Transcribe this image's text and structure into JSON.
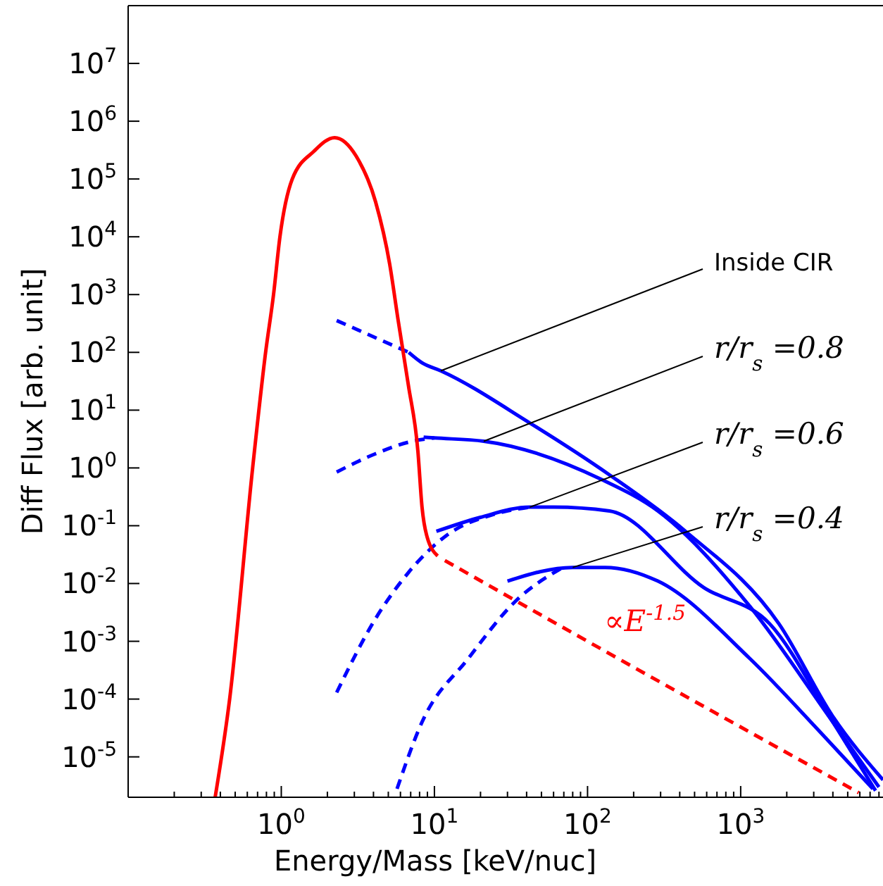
{
  "chart_data": {
    "type": "line",
    "xlabel": "Energy/Mass [keV/nuc]",
    "ylabel": "Diff Flux [arb. unit]",
    "log": "xy",
    "grid": false,
    "marker": "none",
    "xlim": [
      0.1,
      8500
    ],
    "ylim": [
      2e-06,
      100000000.0
    ],
    "xticks": [
      {
        "value": 0.2,
        "label": null
      },
      {
        "value": 0.3,
        "label": null
      },
      {
        "value": 0.4,
        "label": null
      },
      {
        "value": 0.5,
        "label": null
      },
      {
        "value": 0.6,
        "label": null
      },
      {
        "value": 0.7,
        "label": null
      },
      {
        "value": 0.8,
        "label": null
      },
      {
        "value": 0.9,
        "label": null
      },
      {
        "value": 1,
        "label": "10$^{0}$"
      },
      {
        "value": 2,
        "label": null
      },
      {
        "value": 3,
        "label": null
      },
      {
        "value": 4,
        "label": null
      },
      {
        "value": 5,
        "label": null
      },
      {
        "value": 6,
        "label": null
      },
      {
        "value": 7,
        "label": null
      },
      {
        "value": 8,
        "label": null
      },
      {
        "value": 9,
        "label": null
      },
      {
        "value": 10,
        "label": "10$^{1}$"
      },
      {
        "value": 20,
        "label": null
      },
      {
        "value": 30,
        "label": null
      },
      {
        "value": 40,
        "label": null
      },
      {
        "value": 50,
        "label": null
      },
      {
        "value": 60,
        "label": null
      },
      {
        "value": 70,
        "label": null
      },
      {
        "value": 80,
        "label": null
      },
      {
        "value": 90,
        "label": null
      },
      {
        "value": 100,
        "label": "10$^{2}$"
      },
      {
        "value": 200,
        "label": null
      },
      {
        "value": 300,
        "label": null
      },
      {
        "value": 400,
        "label": null
      },
      {
        "value": 500,
        "label": null
      },
      {
        "value": 600,
        "label": null
      },
      {
        "value": 700,
        "label": null
      },
      {
        "value": 800,
        "label": null
      },
      {
        "value": 900,
        "label": null
      },
      {
        "value": 1000,
        "label": "10$^{3}$"
      },
      {
        "value": 2000,
        "label": null
      },
      {
        "value": 3000,
        "label": null
      },
      {
        "value": 4000,
        "label": null
      },
      {
        "value": 5000,
        "label": null
      },
      {
        "value": 6000,
        "label": null
      },
      {
        "value": 7000,
        "label": null
      },
      {
        "value": 8000,
        "label": null
      }
    ],
    "yticks": [
      {
        "value": 1e-05,
        "label": "10$^{-5}$"
      },
      {
        "value": 0.0001,
        "label": "10$^{-4}$"
      },
      {
        "value": 0.001,
        "label": "10$^{-3}$"
      },
      {
        "value": 0.01,
        "label": "10$^{-2}$"
      },
      {
        "value": 0.1,
        "label": "10$^{-1}$"
      },
      {
        "value": 1,
        "label": "10$^{0}$"
      },
      {
        "value": 10,
        "label": "10$^{1}$"
      },
      {
        "value": 100,
        "label": "10$^{2}$"
      },
      {
        "value": 1000,
        "label": "10$^{3}$"
      },
      {
        "value": 10000,
        "label": "10$^{4}$"
      },
      {
        "value": 100000,
        "label": "10$^{5}$"
      },
      {
        "value": 1000000,
        "label": "10$^{6}$"
      },
      {
        "value": 10000000,
        "label": "10$^{7}$"
      }
    ],
    "series": [
      {
        "color": "#0000ff",
        "line_style": "solid",
        "x": [
          6.8,
          8.3,
          11,
          42,
          139,
          436,
          1780,
          4000,
          8500
        ],
        "values": [
          100,
          66,
          48,
          6,
          0.76,
          0.08,
          0.002,
          5e-05,
          4e-06
        ]
      },
      {
        "color": "#0000ff",
        "line_style": "solid",
        "x": [
          8.5,
          10,
          21,
          122,
          288,
          1150,
          4000,
          8000
        ],
        "values": [
          3.4,
          3.3,
          2.9,
          0.64,
          0.18,
          0.004,
          4e-05,
          3e-06
        ]
      },
      {
        "color": "#0000ff",
        "line_style": "solid",
        "x": [
          10.3,
          20,
          42,
          60,
          139,
          575,
          1550,
          4000,
          7600
        ],
        "values": [
          0.08,
          0.14,
          0.21,
          0.21,
          0.18,
          0.0085,
          0.002,
          4e-05,
          2.6e-06
        ]
      },
      {
        "color": "#0000ff",
        "line_style": "solid",
        "x": [
          30,
          80,
          130,
          288,
          1150,
          3300,
          7300
        ],
        "values": [
          0.011,
          0.019,
          0.019,
          0.011,
          0.0005,
          2.7e-05,
          2.8e-06
        ]
      },
      {
        "color": "#0000ff",
        "line_style": "dashed",
        "x": [
          2.3,
          6.8
        ],
        "values": [
          355,
          100
        ]
      },
      {
        "color": "#0000ff",
        "line_style": "dashed",
        "x": [
          2.3,
          4.1,
          7.2,
          10
        ],
        "values": [
          0.85,
          1.75,
          2.9,
          3.3
        ]
      },
      {
        "color": "#0000ff",
        "line_style": "dashed",
        "x": [
          2.3,
          4.1,
          6.7,
          12,
          25,
          42
        ],
        "values": [
          0.00013,
          0.0024,
          0.015,
          0.068,
          0.16,
          0.21
        ]
      },
      {
        "color": "#0000ff",
        "line_style": "dashed",
        "x": [
          5.7,
          8.3,
          16.6,
          34,
          69
        ],
        "values": [
          2.8e-06,
          4e-05,
          0.0005,
          0.005,
          0.019
        ]
      },
      {
        "color": "#ff0000",
        "line_style": "solid",
        "x": [
          0.37,
          0.46,
          0.65,
          0.79,
          0.89,
          0.98,
          1.18,
          1.63,
          2.23,
          3.08,
          4.13,
          5.1,
          5.8,
          6.76,
          7.8,
          8.3,
          8.9,
          10.5
        ],
        "values": [
          2e-06,
          0.0001,
          1,
          100,
          1000,
          10000,
          100000,
          300000,
          520000,
          250000,
          40000,
          3400,
          355,
          27,
          1.95,
          0.21,
          0.068,
          0.03
        ]
      },
      {
        "color": "#ff0000",
        "line_style": "dashed",
        "x": [
          11.7,
          100,
          5900
        ],
        "values": [
          0.025,
          0.001,
          2.4e-06
        ]
      }
    ],
    "annotations": [
      {
        "text": "Inside CIR",
        "x": 11,
        "y": 48
      },
      {
        "text": "r/r$_{s}$ =0.8",
        "x": 21,
        "y": 2.9
      },
      {
        "text": "r/r$_{s}$ =0.6",
        "x": 42,
        "y": 0.21
      },
      {
        "text": "r/r$_{s}$ =0.4",
        "x": 80,
        "y": 0.019
      },
      "∝E$^{-1.5}$"
    ]
  }
}
